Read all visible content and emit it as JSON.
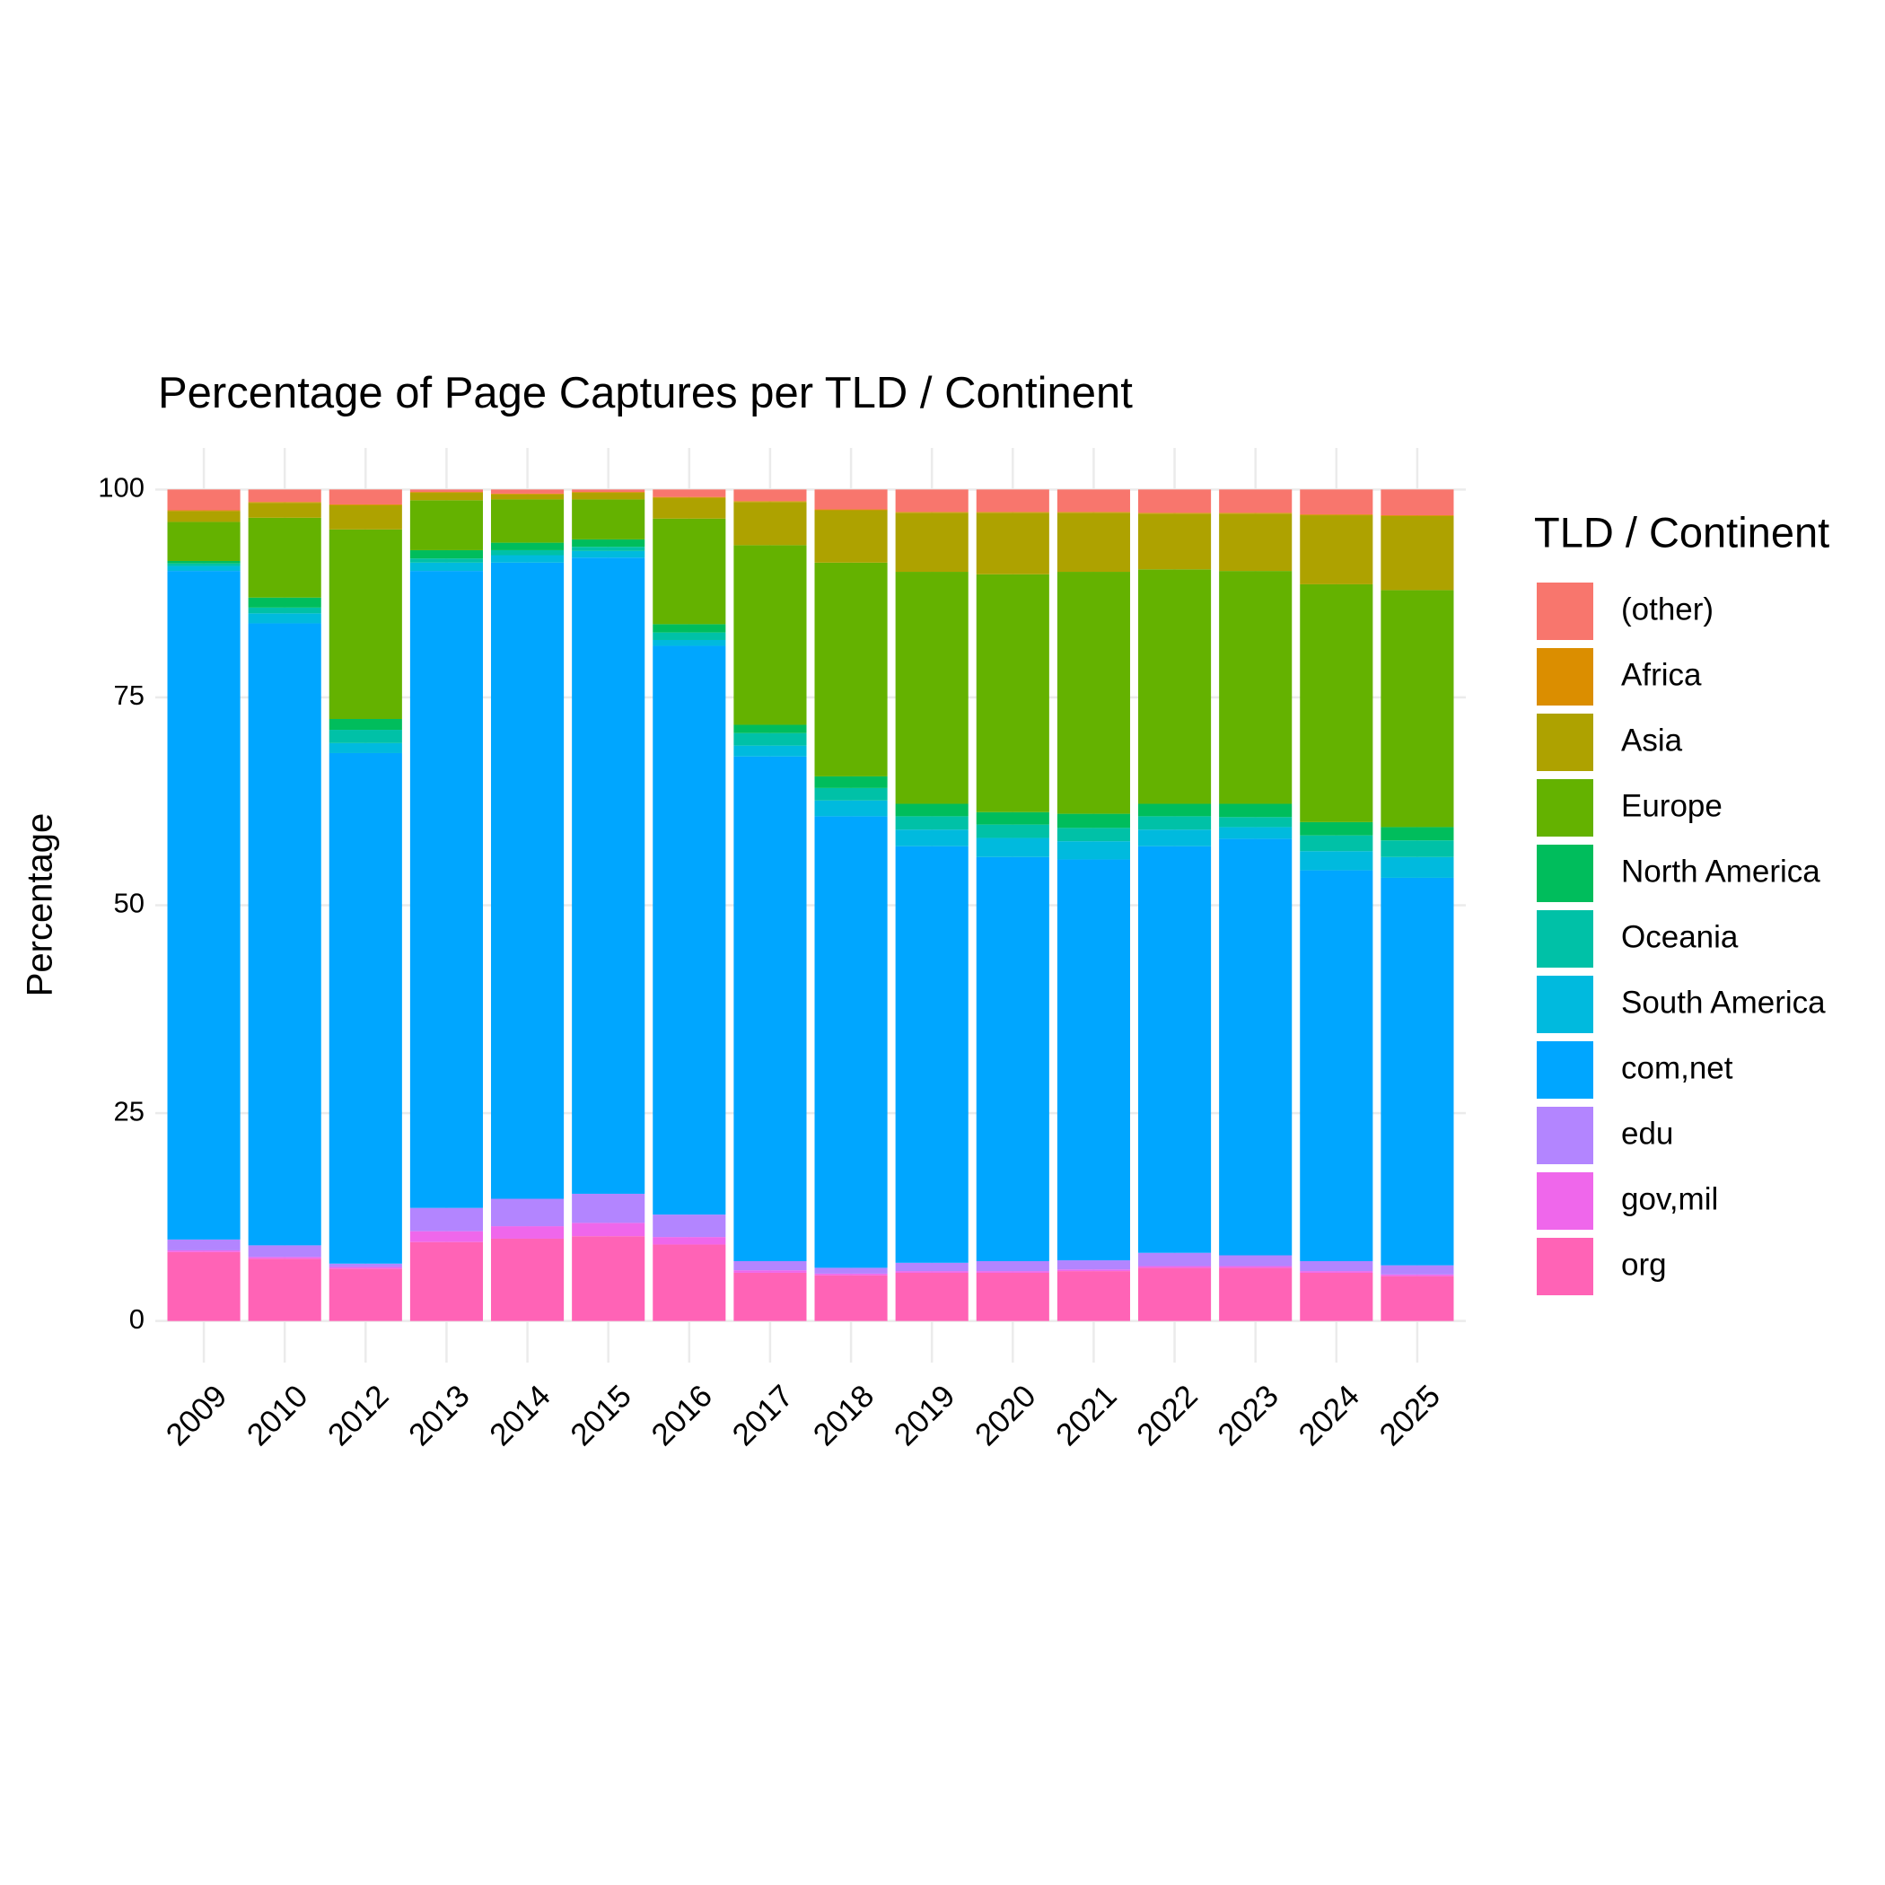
{
  "chart_data": {
    "type": "stacked_bar",
    "title": "Percentage of Page Captures per TLD / Continent",
    "y_label": "Percentage",
    "legend_title": "TLD / Continent",
    "legend_position": "right",
    "grid": true,
    "categories": [
      "2009",
      "2010",
      "2012",
      "2013",
      "2014",
      "2015",
      "2016",
      "2017",
      "2018",
      "2019",
      "2020",
      "2021",
      "2022",
      "2023",
      "2024",
      "2025"
    ],
    "ylim": [
      -5,
      105
    ],
    "yticks": [
      0,
      25,
      50,
      75,
      100
    ],
    "series": [
      {
        "name": "(other)",
        "color": "#F8766D",
        "values": [
          2.5,
          1.5,
          1.8,
          0.3,
          0.5,
          0.3,
          0.9,
          1.4,
          2.4,
          2.7,
          2.7,
          2.7,
          2.8,
          2.8,
          3.0,
          3.1
        ]
      },
      {
        "name": "Africa",
        "color": "#DB8E00",
        "values": [
          0.1,
          0.1,
          0.1,
          0.1,
          0.1,
          0.1,
          0.1,
          0.1,
          0.1,
          0.1,
          0.1,
          0.1,
          0.1,
          0.1,
          0.1,
          0.1
        ]
      },
      {
        "name": "Asia",
        "color": "#AEA200",
        "values": [
          1.3,
          1.8,
          2.9,
          0.9,
          0.6,
          0.8,
          2.5,
          5.2,
          6.3,
          7.1,
          7.4,
          7.1,
          6.7,
          6.9,
          8.3,
          8.9
        ]
      },
      {
        "name": "Europe",
        "color": "#64B200",
        "values": [
          4.7,
          9.6,
          22.8,
          6.0,
          5.2,
          4.8,
          12.7,
          21.6,
          25.7,
          27.9,
          28.6,
          29.1,
          28.2,
          28.0,
          28.6,
          28.5
        ]
      },
      {
        "name": "North America",
        "color": "#00BD5C",
        "values": [
          0.3,
          1.2,
          1.3,
          1.0,
          0.9,
          0.9,
          1.0,
          1.0,
          1.4,
          1.5,
          1.5,
          1.7,
          1.5,
          1.6,
          1.6,
          1.6
        ]
      },
      {
        "name": "Oceania",
        "color": "#00C1A7",
        "values": [
          0.3,
          0.7,
          1.6,
          0.5,
          0.6,
          0.5,
          0.9,
          1.5,
          1.5,
          1.6,
          1.6,
          1.6,
          1.6,
          1.2,
          1.9,
          2.0
        ]
      },
      {
        "name": "South America",
        "color": "#00BADE",
        "values": [
          0.6,
          1.2,
          1.2,
          1.0,
          0.9,
          0.8,
          0.7,
          1.3,
          1.9,
          2.0,
          2.3,
          2.2,
          2.0,
          1.4,
          2.3,
          2.5
        ]
      },
      {
        "name": "com,net",
        "color": "#00A6FF",
        "values": [
          80.4,
          74.8,
          61.4,
          76.6,
          76.5,
          76.5,
          68.4,
          60.7,
          54.3,
          50.1,
          48.6,
          48.2,
          48.9,
          50.1,
          47.0,
          46.6
        ]
      },
      {
        "name": "edu",
        "color": "#B385FF",
        "values": [
          1.3,
          1.4,
          0.4,
          2.8,
          3.3,
          3.5,
          2.7,
          1.1,
          0.7,
          1.0,
          1.2,
          1.1,
          1.6,
          1.3,
          1.2,
          1.1
        ]
      },
      {
        "name": "gov,mil",
        "color": "#EF67EB",
        "values": [
          0.2,
          0.2,
          0.2,
          1.3,
          1.5,
          1.6,
          0.9,
          0.3,
          0.2,
          0.2,
          0.2,
          0.2,
          0.2,
          0.2,
          0.2,
          0.2
        ]
      },
      {
        "name": "org",
        "color": "#FF63B6",
        "values": [
          8.3,
          7.5,
          6.3,
          9.5,
          9.9,
          10.2,
          9.2,
          5.8,
          5.5,
          5.8,
          5.8,
          6.0,
          6.4,
          6.4,
          5.8,
          5.4
        ]
      }
    ]
  }
}
